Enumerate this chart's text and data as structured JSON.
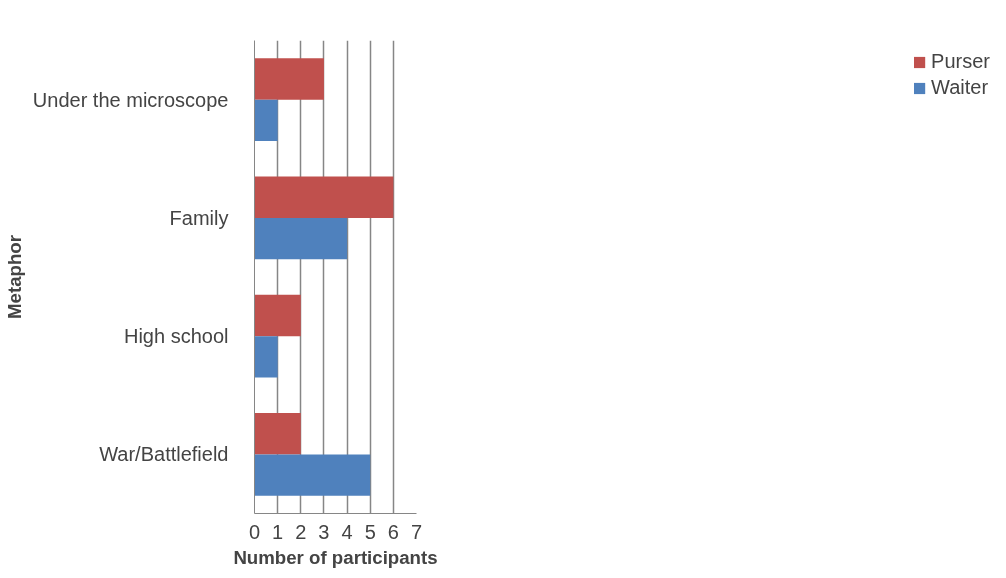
{
  "chart_data": {
    "type": "bar",
    "orientation": "horizontal",
    "xlabel": "Number of participants",
    "ylabel": "Metaphor",
    "categories": [
      "Under the microscope",
      "Family",
      "High school",
      "War/Battlefield"
    ],
    "series": [
      {
        "name": "Purser",
        "color": "#c0504d",
        "values": [
          3,
          6,
          2,
          2
        ]
      },
      {
        "name": "Waiter",
        "color": "#4f81bd",
        "values": [
          1,
          4,
          1,
          5
        ]
      }
    ],
    "xlim": [
      0,
      7
    ],
    "xticks": [
      0,
      1,
      2,
      3,
      4,
      5,
      6,
      7
    ],
    "grid": "x",
    "legend": "right"
  }
}
